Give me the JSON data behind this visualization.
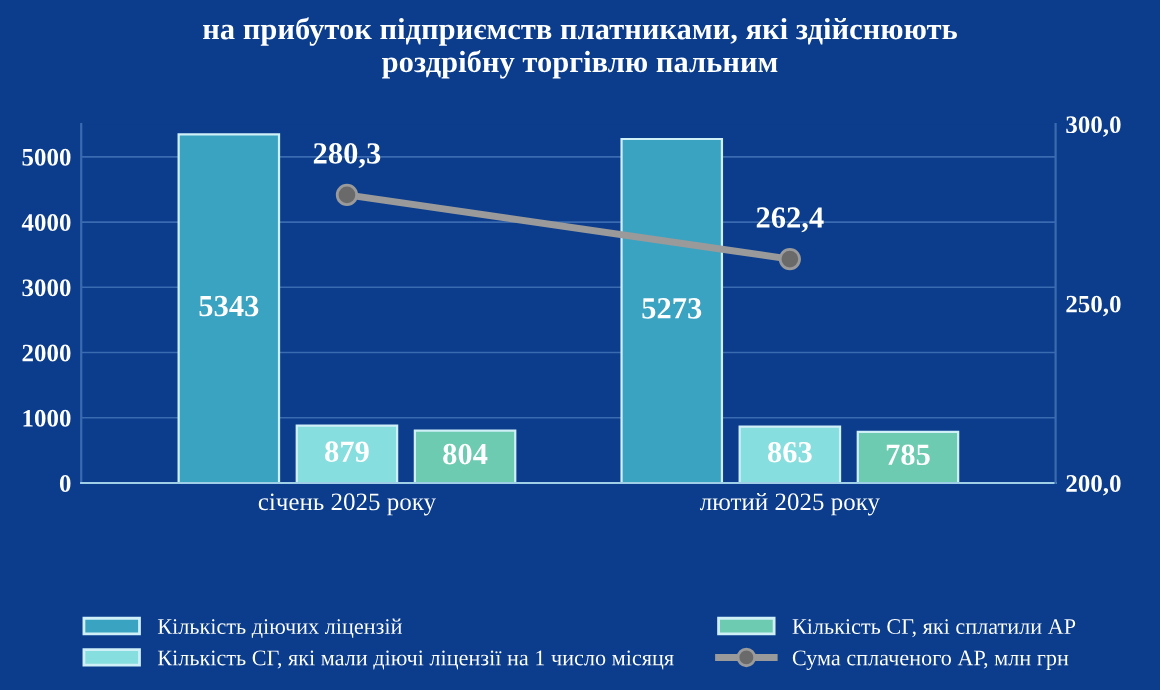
{
  "chart_data": {
    "type": "bar",
    "title": "на прибуток підприємств платниками, які здійснюють\nроздрібну торгівлю пальним",
    "categories": [
      "січень 2025 року",
      "лютий 2025 року"
    ],
    "series": [
      {
        "name": "Кількість діючих ліцензій",
        "color": "#3aa3c2",
        "values": [
          5343,
          5273
        ],
        "value_labels": [
          "5343",
          "5273"
        ]
      },
      {
        "name": "Кількість СГ, які мали діючі ліцензії на 1 число місяця",
        "color": "#86dede",
        "values": [
          879,
          863
        ],
        "value_labels": [
          "879",
          "863"
        ]
      },
      {
        "name": "Кількість СГ, які сплатили АР",
        "color": "#6ccbb0",
        "values": [
          804,
          785
        ],
        "value_labels": [
          "804",
          "785"
        ]
      },
      {
        "name": "Сума сплаченого АР, млн грн",
        "type": "line",
        "axis": "y2",
        "color": "#9a9a9a",
        "marker": "circle",
        "values": [
          280.3,
          262.4
        ],
        "value_labels": [
          "280,3",
          "262,4"
        ]
      }
    ],
    "ylim": [
      0,
      5500
    ],
    "yticks": [
      0,
      1000,
      2000,
      3000,
      4000,
      5000
    ],
    "y2lim": [
      200,
      300
    ],
    "y2ticks": [
      {
        "value": 200,
        "label": "200,0"
      },
      {
        "value": 250,
        "label": "250,0"
      },
      {
        "value": 300,
        "label": "300,0"
      }
    ],
    "grid": "y",
    "legend": "bottom"
  }
}
